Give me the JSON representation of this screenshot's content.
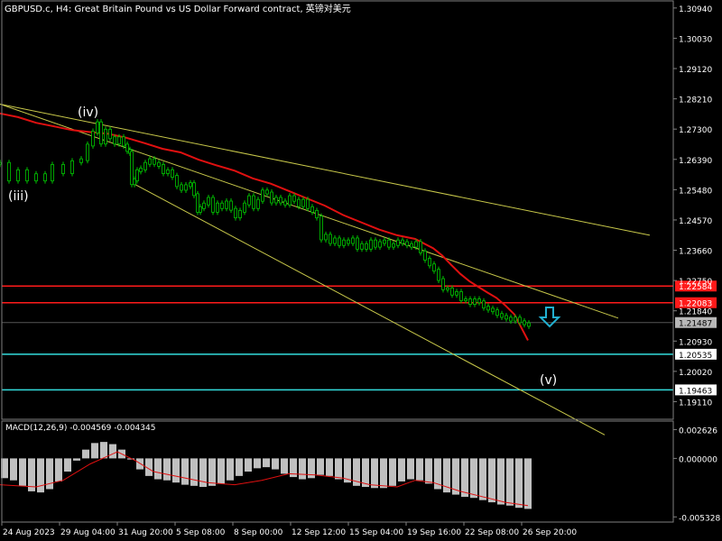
{
  "title": "GBPUSD.c, H4:  Great Britain Pound vs US Dollar Forward contract, 英镑对美元",
  "colors": {
    "background": "#000000",
    "grid": "#2a2a2a",
    "candle": "#00c800",
    "ma": "#e01010",
    "trendline": "#c8c84a",
    "level_red": "#ff1a1a",
    "level_cyan": "#33dddd",
    "macd_hist": "#c0c0c0",
    "macd_signal": "#e01010",
    "arrow": "#22b0d0",
    "text": "#ffffff"
  },
  "chart_data": [
    {
      "type": "line",
      "name": "price",
      "title": "GBPUSD.c, H4:  Great Britain Pound vs US Dollar Forward contract, 英镑对美元",
      "ylim": [
        1.1858,
        1.3118
      ],
      "y_ticks": [
        "1.30940",
        "1.30030",
        "1.29120",
        "1.28210",
        "1.27300",
        "1.26390",
        "1.25480",
        "1.24570",
        "1.23660",
        "1.22750",
        "1.21840",
        "1.20930",
        "1.20020",
        "1.19110"
      ],
      "x_ticks": [
        "24 Aug 2023",
        "29 Aug 04:00",
        "31 Aug 20:00",
        "5 Sep 08:00",
        "8 Sep 00:00",
        "12 Sep 12:00",
        "15 Sep 04:00",
        "19 Sep 16:00",
        "22 Sep 08:00",
        "26 Sep 20:00"
      ],
      "price_path_x": [
        0,
        10,
        20,
        30,
        40,
        50,
        58,
        70,
        80,
        90,
        97,
        103,
        108,
        112,
        117,
        122,
        127,
        132,
        137,
        141,
        144,
        146,
        149,
        152,
        156,
        161,
        166,
        171,
        176,
        181,
        186,
        191,
        196,
        201,
        206,
        211,
        215,
        219,
        222,
        226,
        231,
        236,
        241,
        246,
        251,
        256,
        261,
        266,
        271,
        276,
        281,
        286,
        291,
        296,
        301,
        306,
        311,
        316,
        321,
        326,
        331,
        336,
        341,
        346,
        351,
        356,
        361,
        366,
        371,
        376,
        381,
        386,
        391,
        396,
        401,
        406,
        411,
        416,
        421,
        426,
        431,
        436,
        441,
        446,
        451,
        456,
        461,
        466,
        471,
        476,
        481,
        486,
        491,
        496,
        501,
        506,
        511,
        516,
        521,
        526,
        531,
        536,
        541,
        546,
        551,
        556,
        561,
        566,
        571,
        576,
        581,
        586
      ],
      "price_path_y": [
        1.2627,
        1.2577,
        1.2605,
        1.2577,
        1.2593,
        1.2577,
        1.2621,
        1.2599,
        1.2632,
        1.2638,
        1.2682,
        1.2721,
        1.2749,
        1.2688,
        1.2727,
        1.2704,
        1.2688,
        1.2704,
        1.2682,
        1.2666,
        1.266,
        1.2566,
        1.2577,
        1.2605,
        1.261,
        1.2627,
        1.2638,
        1.2627,
        1.2621,
        1.2599,
        1.2605,
        1.2588,
        1.256,
        1.2549,
        1.256,
        1.2566,
        1.2533,
        1.2483,
        1.2494,
        1.2505,
        1.2522,
        1.2483,
        1.2505,
        1.2494,
        1.2511,
        1.2489,
        1.2466,
        1.2483,
        1.2505,
        1.2527,
        1.2494,
        1.2516,
        1.2544,
        1.2538,
        1.2511,
        1.2522,
        1.2511,
        1.2505,
        1.2527,
        1.2516,
        1.25,
        1.2516,
        1.2494,
        1.2483,
        1.2466,
        1.24,
        1.2411,
        1.2389,
        1.24,
        1.2383,
        1.2394,
        1.2389,
        1.24,
        1.2372,
        1.2383,
        1.2372,
        1.2394,
        1.2378,
        1.2389,
        1.2394,
        1.2378,
        1.2383,
        1.2394,
        1.2389,
        1.2383,
        1.2378,
        1.2389,
        1.2361,
        1.2339,
        1.2322,
        1.2306,
        1.2278,
        1.225,
        1.225,
        1.2234,
        1.2239,
        1.2217,
        1.2217,
        1.2206,
        1.2217,
        1.2211,
        1.2195,
        1.2189,
        1.2184,
        1.2173,
        1.2167,
        1.2162,
        1.2156,
        1.2162,
        1.2151,
        1.2145,
        1.214
      ],
      "ma_x": [
        0,
        20,
        40,
        60,
        80,
        100,
        120,
        140,
        160,
        180,
        200,
        220,
        240,
        260,
        280,
        300,
        320,
        340,
        360,
        380,
        400,
        420,
        440,
        460,
        480,
        490,
        500,
        510,
        520,
        530,
        540,
        550,
        560,
        570,
        585
      ],
      "ma_y": [
        1.2777,
        1.2766,
        1.2749,
        1.2738,
        1.2727,
        1.2721,
        1.2716,
        1.2704,
        1.2688,
        1.2671,
        1.266,
        1.2638,
        1.2621,
        1.2605,
        1.2582,
        1.2566,
        1.2544,
        1.2522,
        1.25,
        1.2472,
        1.245,
        1.2428,
        1.2411,
        1.24,
        1.2372,
        1.235,
        1.2322,
        1.2295,
        1.2273,
        1.2256,
        1.2239,
        1.2223,
        1.22,
        1.2173,
        1.2095
      ],
      "trendlines": [
        {
          "x": [
            0,
            720
          ],
          "y": [
            1.2805,
            1.2411
          ]
        },
        {
          "x": [
            0,
            685
          ],
          "y": [
            1.2805,
            1.2162
          ]
        },
        {
          "x": [
            148,
            670
          ],
          "y": [
            1.2566,
            1.1811
          ]
        }
      ],
      "levels": [
        {
          "value": 1.22584,
          "label": "1.22584",
          "color": "#ff1a1a"
        },
        {
          "value": 1.22083,
          "label": "1.22083",
          "color": "#ff1a1a"
        },
        {
          "value": 1.21487,
          "label": "1.21487",
          "color": "#555555"
        },
        {
          "value": 1.20535,
          "label": "1.20535",
          "color": "#33dddd"
        },
        {
          "value": 1.19463,
          "label": "1.19463",
          "color": "#33dddd"
        }
      ],
      "annotations": [
        "(iv)",
        "(iii)",
        "(v)"
      ]
    },
    {
      "type": "bar",
      "name": "MACD",
      "title": "MACD(12,26,9) -0.004569 -0.004345",
      "ylim": [
        -0.0058,
        0.0034
      ],
      "y_ticks": [
        "0.002626",
        "0.000000",
        "-0.005328"
      ],
      "hist_x": [
        5,
        15,
        25,
        35,
        45,
        55,
        65,
        75,
        85,
        95,
        105,
        115,
        125,
        135,
        145,
        155,
        165,
        175,
        185,
        195,
        205,
        215,
        225,
        235,
        245,
        255,
        265,
        275,
        285,
        295,
        305,
        315,
        325,
        335,
        345,
        355,
        365,
        375,
        385,
        395,
        405,
        415,
        425,
        435,
        445,
        455,
        465,
        475,
        485,
        495,
        505,
        515,
        525,
        535,
        545,
        555,
        565,
        575,
        585
      ],
      "hist_values": [
        -0.0018,
        -0.002,
        -0.0025,
        -0.003,
        -0.0031,
        -0.0028,
        -0.0021,
        -0.0012,
        -0.0002,
        0.0008,
        0.0014,
        0.0015,
        0.0013,
        0.0008,
        -0.0001,
        -0.001,
        -0.0016,
        -0.0019,
        -0.002,
        -0.0022,
        -0.0024,
        -0.0025,
        -0.0026,
        -0.0025,
        -0.0023,
        -0.002,
        -0.0016,
        -0.0012,
        -0.0009,
        -0.0008,
        -0.001,
        -0.0014,
        -0.0017,
        -0.0019,
        -0.0018,
        -0.0015,
        -0.0016,
        -0.0019,
        -0.0022,
        -0.0025,
        -0.0026,
        -0.0027,
        -0.0027,
        -0.0025,
        -0.0021,
        -0.0019,
        -0.002,
        -0.0023,
        -0.0028,
        -0.0031,
        -0.0033,
        -0.0035,
        -0.0036,
        -0.0038,
        -0.004,
        -0.0042,
        -0.0043,
        -0.0045,
        -0.0046
      ],
      "signal_x": [
        0,
        40,
        70,
        100,
        130,
        150,
        170,
        200,
        230,
        260,
        290,
        320,
        350,
        380,
        410,
        440,
        460,
        480,
        510,
        540,
        560,
        585
      ],
      "signal_values": [
        -0.0024,
        -0.0026,
        -0.002,
        -0.0005,
        0.0006,
        -0.0002,
        -0.0012,
        -0.0017,
        -0.0022,
        -0.0024,
        -0.002,
        -0.0014,
        -0.0015,
        -0.0018,
        -0.0024,
        -0.0026,
        -0.002,
        -0.0022,
        -0.003,
        -0.0036,
        -0.004,
        -0.0043
      ]
    }
  ]
}
